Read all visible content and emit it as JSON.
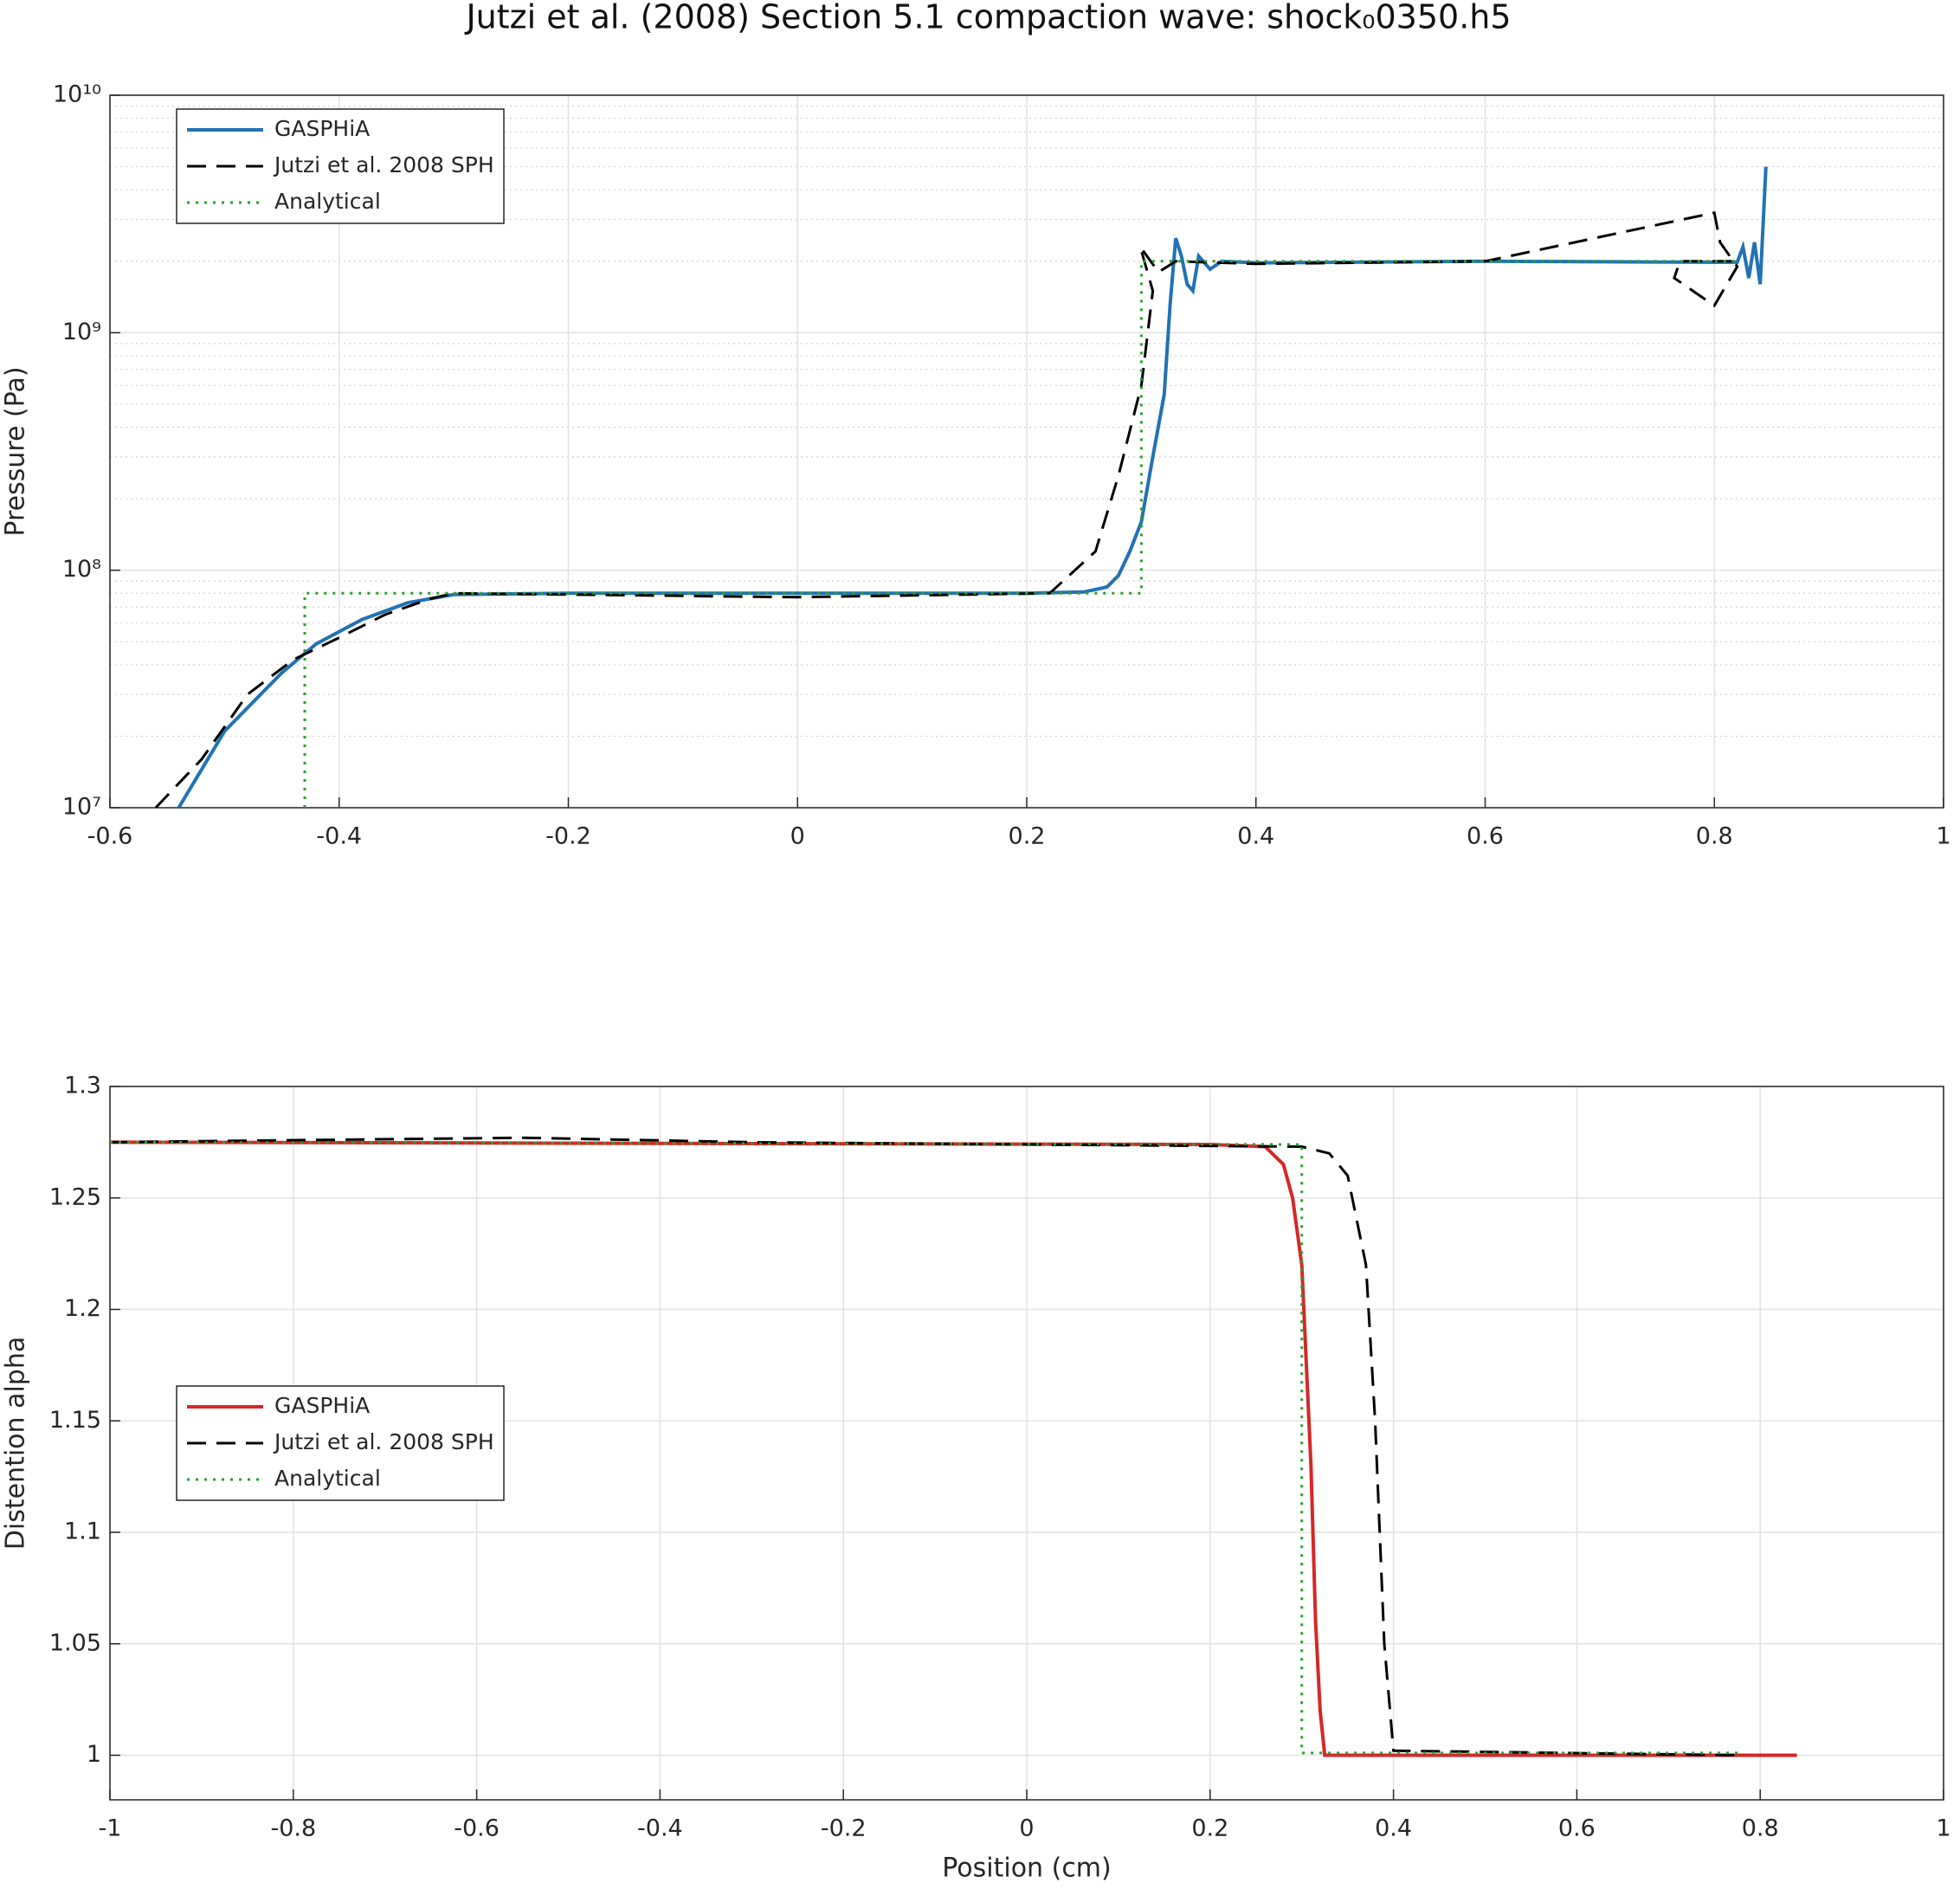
{
  "chart_data": [
    {
      "type": "line",
      "title": "Jutzi et al. (2008) Section 5.1 compaction wave: shock₀0350.h5",
      "ylabel": "Pressure (Pa)",
      "log_y": true,
      "grid": true,
      "minor_grid": true,
      "legend": "northwest",
      "xlim": [
        -0.6,
        1
      ],
      "xticks": [
        -0.6,
        -0.4,
        -0.2,
        0,
        0.2,
        0.4,
        0.6,
        0.8,
        1
      ],
      "ylim": [
        10000000,
        10000000000
      ],
      "yticks": [
        {
          "value": 10000000,
          "label": "10⁷"
        },
        {
          "value": 100000000,
          "label": "10⁸"
        },
        {
          "value": 1000000000,
          "label": "10⁹"
        },
        {
          "value": 10000000000,
          "label": "10¹⁰"
        }
      ],
      "series": [
        {
          "name": "GASPHiA",
          "color": "#2272b4",
          "style": "solid",
          "x": [
            -0.54,
            -0.5,
            -0.45,
            -0.42,
            -0.38,
            -0.34,
            -0.3,
            -0.2,
            0,
            0.2,
            0.25,
            0.27,
            0.28,
            0.29,
            0.3,
            0.31,
            0.32,
            0.325,
            0.33,
            0.335,
            0.34,
            0.345,
            0.35,
            0.36,
            0.37,
            0.4,
            0.6,
            0.8,
            0.82,
            0.825,
            0.83,
            0.835,
            0.84,
            0.845
          ],
          "values": [
            10000000,
            21000000,
            37000000,
            49000000,
            62000000,
            73000000,
            79000000,
            80000000,
            80000000,
            80000000,
            81000000,
            85000000,
            95000000,
            120000000,
            160000000,
            300000000,
            550000000,
            1300000000,
            2500000000,
            2100000000,
            1600000000,
            1500000000,
            2100000000,
            1850000000,
            2000000000,
            1970000000,
            2000000000,
            1980000000,
            1980000000,
            2300000000,
            1700000000,
            2400000000,
            1600000000,
            5000000000
          ]
        },
        {
          "name": "Jutzi et al. 2008 SPH",
          "color": "#000000",
          "style": "dashed",
          "x": [
            -0.56,
            -0.52,
            -0.48,
            -0.44,
            -0.4,
            -0.36,
            -0.32,
            -0.3,
            0,
            0.22,
            0.26,
            0.28,
            0.3,
            0.31,
            0.299,
            0.315,
            0.33,
            0.4,
            0.6,
            0.8,
            0.805,
            0.82,
            0.8,
            0.765,
            0.77,
            0.82
          ],
          "values": [
            10000000,
            16000000,
            30000000,
            42000000,
            52000000,
            65000000,
            76000000,
            80000000,
            77000000,
            80000000,
            120000000,
            250000000,
            600000000,
            1500000000,
            2300000000,
            1800000000,
            2000000000,
            1950000000,
            2000000000,
            3200000000,
            2400000000,
            1900000000,
            1300000000,
            1700000000,
            2000000000,
            2000000000
          ]
        },
        {
          "name": "Analytical",
          "color": "#2ca02c",
          "style": "dotted",
          "x": [
            -0.43,
            -0.43,
            0.3,
            0.3,
            0.82
          ],
          "values": [
            10000000,
            80000000,
            80000000,
            2000000000,
            2000000000
          ]
        }
      ]
    },
    {
      "type": "line",
      "xlabel": "Position (cm)",
      "ylabel": "Distention alpha",
      "grid": true,
      "legend": "west",
      "xlim": [
        -1,
        1
      ],
      "xticks": [
        -1,
        -0.8,
        -0.6,
        -0.4,
        -0.2,
        0,
        0.2,
        0.4,
        0.6,
        0.8,
        1
      ],
      "ylim": [
        0.98,
        1.3
      ],
      "yticks": [
        1,
        1.05,
        1.1,
        1.15,
        1.2,
        1.25,
        1.3
      ],
      "series": [
        {
          "name": "GASPHiA",
          "color": "#d62728",
          "style": "solid",
          "x": [
            -1,
            0.2,
            0.26,
            0.28,
            0.29,
            0.3,
            0.31,
            0.315,
            0.32,
            0.325,
            0.84
          ],
          "values": [
            1.275,
            1.274,
            1.273,
            1.265,
            1.25,
            1.22,
            1.13,
            1.06,
            1.02,
            1,
            1
          ]
        },
        {
          "name": "Jutzi et al. 2008 SPH",
          "color": "#000000",
          "style": "dashed",
          "x": [
            -1,
            -0.55,
            -0.3,
            0,
            0.3,
            0.33,
            0.35,
            0.37,
            0.38,
            0.39,
            0.4,
            0.78
          ],
          "values": [
            1.275,
            1.277,
            1.275,
            1.274,
            1.273,
            1.27,
            1.26,
            1.22,
            1.15,
            1.05,
            1.002,
            1
          ]
        },
        {
          "name": "Analytical",
          "color": "#2ca02c",
          "style": "dotted",
          "x": [
            -1,
            0.3,
            0.3,
            0.78
          ],
          "values": [
            1.275,
            1.274,
            1.001,
            1.001
          ]
        }
      ]
    }
  ]
}
